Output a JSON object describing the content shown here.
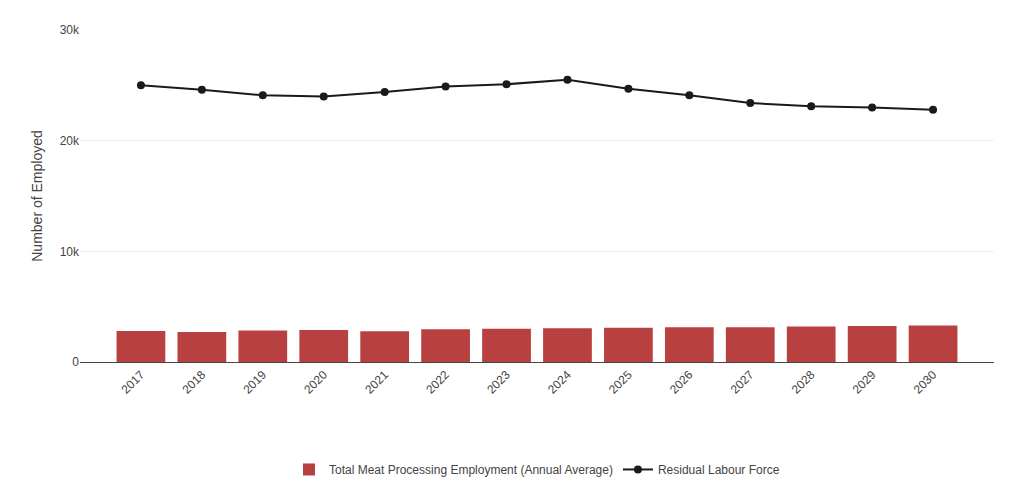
{
  "chart_data": {
    "type": "bar",
    "x": [
      2017,
      2018,
      2019,
      2020,
      2021,
      2022,
      2023,
      2024,
      2025,
      2026,
      2027,
      2028,
      2029,
      2030
    ],
    "xlim": [
      2016,
      2031
    ],
    "xticks": [
      2017,
      2018,
      2019,
      2020,
      2021,
      2022,
      2023,
      2024,
      2025,
      2026,
      2027,
      2028,
      2029,
      2030
    ],
    "ylabel": "Number of Employed",
    "ylim": [
      0,
      30000
    ],
    "yticks": [
      0,
      {
        "value": 10000,
        "label": "10k"
      },
      {
        "value": 20000,
        "label": "20k"
      },
      {
        "value": 30000,
        "label": "30k"
      }
    ],
    "grid": true,
    "legend": "bottom",
    "series": [
      {
        "name": "Total Meat Processing Employment (Annual Average)",
        "type": "bar",
        "color": "#b94040",
        "values": [
          2800,
          2700,
          2850,
          2900,
          2780,
          2950,
          3000,
          3050,
          3100,
          3150,
          3150,
          3200,
          3250,
          3300
        ]
      },
      {
        "name": "Residual Labour Force",
        "type": "line",
        "color": "#1a1a1a",
        "marker": "circle",
        "values": [
          25000,
          24600,
          24100,
          24000,
          24400,
          24900,
          25100,
          25500,
          24700,
          24100,
          23400,
          23100,
          23000,
          22800
        ]
      }
    ]
  }
}
